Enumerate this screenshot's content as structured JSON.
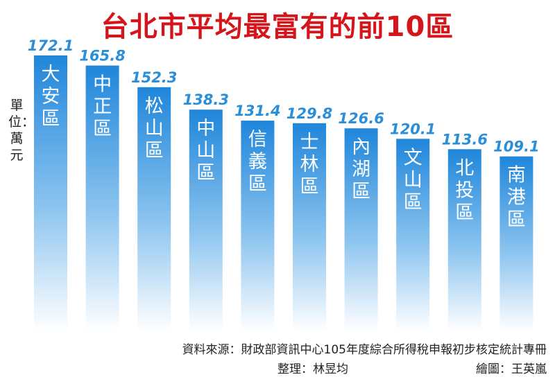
{
  "chart_data": {
    "type": "bar",
    "title": "台北市平均最富有的前10區",
    "ylabel": "單位：萬元",
    "categories": [
      "大安區",
      "中正區",
      "松山區",
      "中山區",
      "信義區",
      "士林區",
      "內湖區",
      "文山區",
      "北投區",
      "南港區"
    ],
    "values": [
      172.1,
      165.8,
      152.3,
      138.3,
      131.4,
      129.8,
      126.6,
      120.1,
      113.6,
      109.1
    ],
    "ylim": [
      0,
      178
    ],
    "grid": false,
    "colors": {
      "title": "#d4161c",
      "value_label": "#2a8fd8",
      "bar_top": "#1f86da",
      "bar_bottom": "#ffffff"
    }
  },
  "footer": {
    "source": "資料來源：財政部資訊中心105年度綜合所得稅申報初步核定統計專冊",
    "compiled_by": "整理：林昱均",
    "drawn_by": "繪圖：王英嵐"
  }
}
